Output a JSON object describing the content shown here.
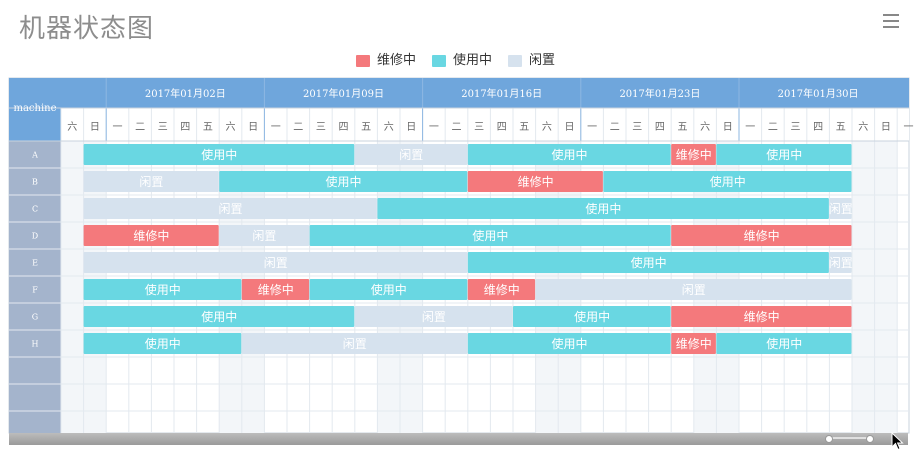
{
  "title": "机器状态图",
  "menu_icon": "hamburger-menu-icon",
  "legend": [
    {
      "label": "维修中",
      "color": "#f4797c"
    },
    {
      "label": "使用中",
      "color": "#69d7e2"
    },
    {
      "label": "闲置",
      "color": "#d6e2ee"
    }
  ],
  "chart_data": {
    "type": "gantt",
    "title": "机器状态图",
    "row_header": "machine",
    "week_labels": [
      "2017年01月02日",
      "2017年01月09日",
      "2017年01月16日",
      "2017年01月23日",
      "2017年01月30日"
    ],
    "day_labels": [
      "六",
      "日",
      "一",
      "二",
      "三",
      "四",
      "五",
      "六",
      "日",
      "一",
      "二",
      "三",
      "四",
      "五",
      "六",
      "日",
      "一",
      "二",
      "三",
      "四",
      "五",
      "六",
      "日",
      "一",
      "二",
      "三",
      "四",
      "五",
      "六",
      "日",
      "一",
      "二",
      "三",
      "四",
      "五",
      "六",
      "日",
      "一"
    ],
    "x_start": "2016-12-31",
    "x_end": "2017-02-06",
    "machines": [
      "A",
      "B",
      "C",
      "D",
      "E",
      "F",
      "G",
      "H"
    ],
    "tasks": [
      {
        "machine": "A",
        "status": "使用中",
        "start": "2017-01-01",
        "end": "2017-01-13"
      },
      {
        "machine": "A",
        "status": "闲置",
        "start": "2017-01-13",
        "end": "2017-01-18"
      },
      {
        "machine": "A",
        "status": "使用中",
        "start": "2017-01-18",
        "end": "2017-01-27"
      },
      {
        "machine": "A",
        "status": "维修中",
        "start": "2017-01-27",
        "end": "2017-01-29"
      },
      {
        "machine": "A",
        "status": "使用中",
        "start": "2017-01-29",
        "end": "2017-02-04"
      },
      {
        "machine": "B",
        "status": "闲置",
        "start": "2017-01-01",
        "end": "2017-01-07"
      },
      {
        "machine": "B",
        "status": "使用中",
        "start": "2017-01-07",
        "end": "2017-01-18"
      },
      {
        "machine": "B",
        "status": "维修中",
        "start": "2017-01-18",
        "end": "2017-01-24"
      },
      {
        "machine": "B",
        "status": "使用中",
        "start": "2017-01-24",
        "end": "2017-02-04"
      },
      {
        "machine": "C",
        "status": "闲置",
        "start": "2017-01-01",
        "end": "2017-01-14"
      },
      {
        "machine": "C",
        "status": "使用中",
        "start": "2017-01-14",
        "end": "2017-02-03"
      },
      {
        "machine": "C",
        "status": "闲置",
        "start": "2017-02-03",
        "end": "2017-02-04"
      },
      {
        "machine": "D",
        "status": "维修中",
        "start": "2017-01-01",
        "end": "2017-01-07"
      },
      {
        "machine": "D",
        "status": "闲置",
        "start": "2017-01-07",
        "end": "2017-01-11"
      },
      {
        "machine": "D",
        "status": "使用中",
        "start": "2017-01-11",
        "end": "2017-01-27"
      },
      {
        "machine": "D",
        "status": "维修中",
        "start": "2017-01-27",
        "end": "2017-02-04"
      },
      {
        "machine": "E",
        "status": "闲置",
        "start": "2017-01-01",
        "end": "2017-01-18"
      },
      {
        "machine": "E",
        "status": "使用中",
        "start": "2017-01-18",
        "end": "2017-02-03"
      },
      {
        "machine": "E",
        "status": "闲置",
        "start": "2017-02-03",
        "end": "2017-02-04"
      },
      {
        "machine": "F",
        "status": "使用中",
        "start": "2017-01-01",
        "end": "2017-01-08"
      },
      {
        "machine": "F",
        "status": "维修中",
        "start": "2017-01-08",
        "end": "2017-01-11"
      },
      {
        "machine": "F",
        "status": "使用中",
        "start": "2017-01-11",
        "end": "2017-01-18"
      },
      {
        "machine": "F",
        "status": "维修中",
        "start": "2017-01-18",
        "end": "2017-01-21"
      },
      {
        "machine": "F",
        "status": "闲置",
        "start": "2017-01-21",
        "end": "2017-02-04"
      },
      {
        "machine": "G",
        "status": "使用中",
        "start": "2017-01-01",
        "end": "2017-01-13"
      },
      {
        "machine": "G",
        "status": "闲置",
        "start": "2017-01-13",
        "end": "2017-01-20"
      },
      {
        "machine": "G",
        "status": "使用中",
        "start": "2017-01-20",
        "end": "2017-01-27"
      },
      {
        "machine": "G",
        "status": "维修中",
        "start": "2017-01-27",
        "end": "2017-02-04"
      },
      {
        "machine": "H",
        "status": "使用中",
        "start": "2017-01-01",
        "end": "2017-01-08"
      },
      {
        "machine": "H",
        "status": "闲置",
        "start": "2017-01-08",
        "end": "2017-01-18"
      },
      {
        "machine": "H",
        "status": "使用中",
        "start": "2017-01-18",
        "end": "2017-01-27"
      },
      {
        "machine": "H",
        "status": "维修中",
        "start": "2017-01-27",
        "end": "2017-01-29"
      },
      {
        "machine": "H",
        "status": "使用中",
        "start": "2017-01-29",
        "end": "2017-02-04"
      }
    ],
    "grid": true,
    "legend_position": "top-center",
    "colors": {
      "维修中": "#f4797c",
      "使用中": "#69d7e2",
      "闲置": "#d6e2ee",
      "header_blue": "#6fa6dc",
      "machine_column": "#a4b4cc"
    }
  }
}
